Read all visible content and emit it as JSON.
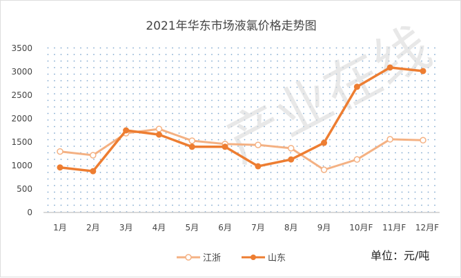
{
  "chart_data": {
    "type": "line",
    "title": "2021年华东市场液氯价格走势图",
    "categories": [
      "1月",
      "2月",
      "3月",
      "4月",
      "5月",
      "6月",
      "7月",
      "8月",
      "9月",
      "10月F",
      "11月F",
      "12月F"
    ],
    "series": [
      {
        "name": "江浙",
        "color": "#f4b183",
        "marker": "hollow",
        "values": [
          1300,
          1220,
          1690,
          1780,
          1530,
          1460,
          1440,
          1370,
          910,
          1130,
          1560,
          1540
        ]
      },
      {
        "name": "山东",
        "color": "#ed7d31",
        "marker": "filled",
        "values": [
          960,
          880,
          1750,
          1660,
          1400,
          1400,
          985,
          1130,
          1485,
          2680,
          3090,
          3015
        ]
      }
    ],
    "yticks": [
      0,
      500,
      1000,
      1500,
      2000,
      2500,
      3000,
      3500
    ],
    "ylim": [
      0,
      3500
    ],
    "grid": "dotted background",
    "legend": "bottom",
    "unit_label": "单位：元/吨",
    "watermark": "产业在线"
  }
}
